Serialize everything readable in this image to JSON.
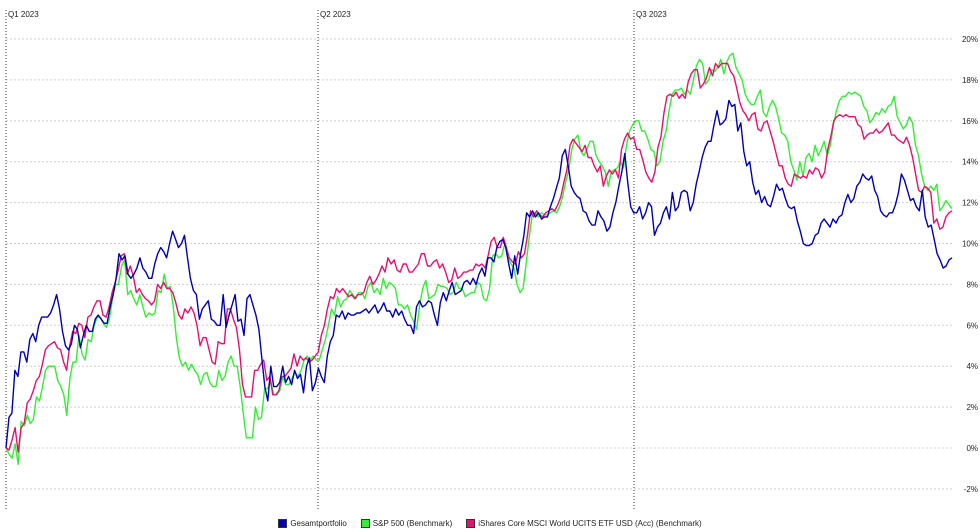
{
  "chart_data": {
    "type": "line",
    "quarter_labels": [
      "Q1 2023",
      "Q2 2023",
      "Q3 2023"
    ],
    "y_tick_labels": [
      "-2%",
      "0%",
      "2%",
      "4%",
      "6%",
      "8%",
      "10%",
      "12%",
      "14%",
      "16%",
      "18%",
      "20%"
    ],
    "ylim": [
      -2.5,
      21
    ],
    "grid": true,
    "legend_position": "bottom-center",
    "series": [
      {
        "name": "Gesamtportfolio",
        "color": "#0000b0",
        "values": [
          0.0,
          1.5,
          1.7,
          3.8,
          3.5,
          4.7,
          4.7,
          4.2,
          5.3,
          5.6,
          5.2,
          6.0,
          6.4,
          6.4,
          6.4,
          6.6,
          7.0,
          7.5,
          6.8,
          5.7,
          5.0,
          4.8,
          5.1,
          6.0,
          5.8,
          4.9,
          5.5,
          6.0,
          5.7,
          5.7,
          6.3,
          6.5,
          6.3,
          6.1,
          6.1,
          6.9,
          7.5,
          8.3,
          9.5,
          9.2,
          9.4,
          8.5,
          8.3,
          8.5,
          8.8,
          9.3,
          8.8,
          8.6,
          8.3,
          8.3,
          9.0,
          9.5,
          9.8,
          9.6,
          9.3,
          10.0,
          10.6,
          10.2,
          9.8,
          10.0,
          10.4,
          9.3,
          8.3,
          7.7,
          7.5,
          6.3,
          6.8,
          7.0,
          7.2,
          6.3,
          6.2,
          6.0,
          6.0,
          7.5,
          5.9,
          6.5,
          7.0,
          7.5,
          6.2,
          6.3,
          5.5,
          7.3,
          7.5,
          7.0,
          6.5,
          5.8,
          4.4,
          3.0,
          2.3,
          4.0,
          3.0,
          3.0,
          3.2,
          4.0,
          3.2,
          3.5,
          3.1,
          3.8,
          3.4,
          3.6,
          2.7,
          4.0,
          4.4,
          2.8,
          3.2,
          3.9,
          3.5,
          3.2,
          4.5,
          5.2,
          5.5,
          6.5,
          6.4,
          6.7,
          6.3,
          6.6,
          6.5,
          6.5,
          6.6,
          6.6,
          6.7,
          6.8,
          6.6,
          6.8,
          7.0,
          6.6,
          6.8,
          7.1,
          6.7,
          6.7,
          6.4,
          6.8,
          6.5,
          6.7,
          6.3,
          6.0,
          6.0,
          5.6,
          6.9,
          7.2,
          6.9,
          7.0,
          7.2,
          7.1,
          6.5,
          6.0,
          7.1,
          7.6,
          7.2,
          7.7,
          8.1,
          7.5,
          7.6,
          7.7,
          8.1,
          8.2,
          8.0,
          8.3,
          8.0,
          8.5,
          8.8,
          8.4,
          9.3,
          9.3,
          9.1,
          9.8,
          10.1,
          10.2,
          9.8,
          9.0,
          8.3,
          9.4,
          8.5,
          9.5,
          10.3,
          11.5,
          11.3,
          11.6,
          11.3,
          11.5,
          11.2,
          11.3,
          11.3,
          11.8,
          12.2,
          12.7,
          13.2,
          14.3,
          14.6,
          13.8,
          12.8,
          12.5,
          12.3,
          12.2,
          11.6,
          11.5,
          11.1,
          10.9,
          10.9,
          11.6,
          11.3,
          11.1,
          10.6,
          10.8,
          11.5,
          12.0,
          12.8,
          13.5,
          14.4,
          13.0,
          11.8,
          11.5,
          11.5,
          11.8,
          11.2,
          11.5,
          12.0,
          11.8,
          10.4,
          10.8,
          11.0,
          11.5,
          11.8,
          11.2,
          12.5,
          11.6,
          11.8,
          12.5,
          12.6,
          12.5,
          11.6,
          12.0,
          12.9,
          13.5,
          14.2,
          14.7,
          15.0,
          15.0,
          15.8,
          16.5,
          15.8,
          15.9,
          16.1,
          17.0,
          16.7,
          16.8,
          15.5,
          15.9,
          14.5,
          13.8,
          14.0,
          13.0,
          12.4,
          12.6,
          12.0,
          12.3,
          11.9,
          11.8,
          12.3,
          12.9,
          12.6,
          12.7,
          12.2,
          11.8,
          11.7,
          11.8,
          11.1,
          10.6,
          10.0,
          9.9,
          9.9,
          10.0,
          10.4,
          10.5,
          11.0,
          11.2,
          11.0,
          10.8,
          11.2,
          11.0,
          11.3,
          11.4,
          12.0,
          12.4,
          12.0,
          12.2,
          12.8,
          13.0,
          13.4,
          13.2,
          13.1,
          13.3,
          12.6,
          12.3,
          11.6,
          11.4,
          11.3,
          11.5,
          11.5,
          11.9,
          12.5,
          13.4,
          13.1,
          12.6,
          12.1,
          12.2,
          11.8,
          11.6,
          12.6,
          11.3,
          10.8,
          10.9,
          10.2,
          9.5,
          9.2,
          8.8,
          8.9,
          9.2,
          9.3
        ]
      },
      {
        "name": "S&P 500 (Benchmark)",
        "color": "#33ee33",
        "values": [
          0.0,
          -0.3,
          -0.5,
          0.2,
          -0.8,
          1.3,
          1.1,
          1.6,
          1.2,
          1.4,
          2.5,
          2.3,
          3.0,
          3.8,
          4.0,
          4.0,
          4.0,
          3.3,
          3.0,
          2.6,
          1.6,
          3.4,
          4.2,
          4.2,
          5.5,
          4.6,
          4.3,
          5.3,
          5.2,
          6.0,
          6.4,
          6.4,
          6.1,
          5.9,
          6.3,
          7.3,
          8.0,
          8.0,
          8.9,
          9.2,
          7.5,
          7.7,
          7.3,
          7.0,
          7.5,
          6.9,
          6.4,
          6.6,
          6.5,
          6.6,
          7.7,
          7.6,
          8.5,
          7.8,
          7.9,
          6.9,
          5.4,
          4.4,
          4.0,
          4.2,
          3.8,
          4.1,
          3.8,
          3.6,
          3.1,
          3.6,
          3.7,
          3.2,
          3.0,
          3.0,
          3.8,
          3.3,
          3.5,
          4.2,
          4.5,
          4.0,
          4.0,
          3.0,
          1.7,
          0.5,
          0.5,
          0.5,
          2.0,
          1.4,
          1.5,
          2.9,
          2.9,
          3.3,
          2.6,
          2.6,
          2.8,
          3.5,
          3.1,
          3.1,
          3.4,
          3.7,
          3.5,
          3.8,
          4.3,
          4.5,
          4.3,
          4.5,
          4.3,
          4.3,
          4.8,
          5.3,
          6.0,
          6.8,
          6.5,
          7.4,
          6.9,
          7.2,
          7.3,
          7.7,
          7.5,
          7.3,
          7.6,
          7.6,
          7.3,
          7.9,
          8.1,
          7.6,
          7.8,
          7.5,
          8.3,
          7.8,
          8.1,
          8.0,
          7.8,
          7.0,
          7.0,
          6.8,
          7.0,
          6.5,
          6.2,
          5.8,
          7.0,
          7.8,
          8.2,
          7.3,
          7.4,
          7.5,
          8.0,
          7.9,
          7.9,
          7.8,
          7.5,
          7.6,
          8.1,
          7.8,
          7.8,
          7.4,
          7.5,
          7.6,
          7.6,
          8.1,
          8.0,
          7.3,
          7.2,
          7.8,
          9.4,
          9.5,
          9.3,
          9.4,
          10.0,
          9.3,
          9.0,
          8.8,
          8.0,
          7.6,
          7.8,
          9.0,
          10.3,
          11.4,
          11.5,
          11.3,
          11.5,
          11.4,
          11.4,
          11.5,
          11.6,
          11.5,
          11.8,
          12.3,
          13.0,
          13.6,
          14.6,
          15.1,
          15.3,
          14.5,
          14.3,
          14.6,
          15.0,
          15.0,
          14.3,
          14.0,
          13.8,
          13.5,
          12.8,
          13.5,
          13.6,
          13.7,
          14.0,
          13.7,
          14.8,
          15.5,
          15.8,
          16.0,
          16.0,
          15.5,
          15.5,
          15.1,
          14.6,
          14.5,
          13.8,
          14.0,
          15.0,
          15.5,
          16.5,
          17.3,
          17.5,
          17.5,
          17.6,
          17.3,
          17.5,
          17.3,
          18.0,
          18.7,
          19.0,
          18.8,
          17.8,
          18.0,
          18.5,
          18.4,
          18.6,
          19.0,
          18.3,
          18.9,
          19.2,
          19.3,
          18.6,
          18.3,
          18.0,
          17.3,
          17.0,
          16.8,
          16.8,
          17.2,
          17.5,
          16.4,
          16.2,
          16.7,
          17.0,
          16.7,
          16.1,
          15.4,
          15.3,
          15.0,
          14.0,
          13.6,
          13.1,
          14.0,
          13.3,
          14.2,
          14.4,
          14.0,
          14.8,
          14.3,
          14.6,
          15.0,
          14.3,
          14.8,
          15.8,
          16.5,
          17.0,
          17.2,
          17.2,
          17.4,
          17.3,
          17.4,
          17.3,
          17.2,
          16.7,
          16.5,
          15.9,
          16.1,
          16.4,
          16.3,
          16.6,
          16.4,
          16.7,
          16.8,
          17.2,
          16.2,
          15.9,
          15.6,
          15.8,
          16.2,
          15.9,
          14.8,
          14.3,
          13.4,
          12.8,
          12.6,
          12.8,
          12.6,
          12.9,
          11.6,
          11.8,
          12.1,
          11.9,
          11.7
        ]
      },
      {
        "name": "iShares Core MSCI World UCITS ETF USD (Acc) (Benchmark)",
        "color": "#e6106f",
        "values": [
          0.0,
          -0.1,
          0.4,
          1.0,
          -0.2,
          1.0,
          1.2,
          2.2,
          2.4,
          2.8,
          3.3,
          3.5,
          4.1,
          4.8,
          5.0,
          5.1,
          5.2,
          4.9,
          4.8,
          4.2,
          3.8,
          5.0,
          5.7,
          5.6,
          6.1,
          6.0,
          5.4,
          6.4,
          6.5,
          6.9,
          7.2,
          7.2,
          6.5,
          6.4,
          6.9,
          7.6,
          8.1,
          8.7,
          9.4,
          9.5,
          8.5,
          8.9,
          8.4,
          7.6,
          7.8,
          7.5,
          7.3,
          7.2,
          7.0,
          7.2,
          8.0,
          7.8,
          8.1,
          7.8,
          7.8,
          7.6,
          7.1,
          6.5,
          6.3,
          6.8,
          6.6,
          6.9,
          6.6,
          6.0,
          5.0,
          5.4,
          5.4,
          4.8,
          4.2,
          4.1,
          5.2,
          5.1,
          5.1,
          6.8,
          6.8,
          6.3,
          5.9,
          4.8,
          3.1,
          2.5,
          2.5,
          2.5,
          3.8,
          3.8,
          4.1,
          4.3,
          3.3,
          3.5,
          2.6,
          2.6,
          2.8,
          3.5,
          3.5,
          3.7,
          3.9,
          4.6,
          4.0,
          4.5,
          4.3,
          4.4,
          4.2,
          4.3,
          4.5,
          4.7,
          5.5,
          6.0,
          6.8,
          7.4,
          7.3,
          7.8,
          7.6,
          7.8,
          7.6,
          7.4,
          7.5,
          7.3,
          7.5,
          7.5,
          7.6,
          8.1,
          8.4,
          8.0,
          8.2,
          8.5,
          8.9,
          8.6,
          9.3,
          9.0,
          9.2,
          8.7,
          8.6,
          9.0,
          9.0,
          8.6,
          8.6,
          8.8,
          9.0,
          9.5,
          9.5,
          8.9,
          8.9,
          9.1,
          9.2,
          8.8,
          9.0,
          8.6,
          8.1,
          8.2,
          8.8,
          8.3,
          8.4,
          8.6,
          8.6,
          8.7,
          8.7,
          9.0,
          8.9,
          9.0,
          8.8,
          9.4,
          10.1,
          10.3,
          9.8,
          9.8,
          10.3,
          9.8,
          9.3,
          9.1,
          9.0,
          9.6,
          9.3,
          9.5,
          10.4,
          11.6,
          11.3,
          11.6,
          11.4,
          11.3,
          11.5,
          11.6,
          11.7,
          11.6,
          11.9,
          12.3,
          13.0,
          13.6,
          14.8,
          15.1,
          14.9,
          14.7,
          14.5,
          14.8,
          14.2,
          14.2,
          13.8,
          13.5,
          13.8,
          12.8,
          13.3,
          13.6,
          13.4,
          13.6,
          13.2,
          14.6,
          15.1,
          15.4,
          15.1,
          15.2,
          14.6,
          14.6,
          14.1,
          13.5,
          13.2,
          13.0,
          13.5,
          14.7,
          15.2,
          16.4,
          17.2,
          17.3,
          17.2,
          17.4,
          17.1,
          17.3,
          17.1,
          17.9,
          18.3,
          18.5,
          18.5,
          17.6,
          17.8,
          18.1,
          18.6,
          18.2,
          18.8,
          18.6,
          18.8,
          18.8,
          18.8,
          18.4,
          18.2,
          17.6,
          16.9,
          16.5,
          16.3,
          16.0,
          16.3,
          16.4,
          15.6,
          15.5,
          15.9,
          16.0,
          15.5,
          15.0,
          14.4,
          13.8,
          13.8,
          13.2,
          12.9,
          12.8,
          13.4,
          13.3,
          13.2,
          13.3,
          13.2,
          13.6,
          13.4,
          13.7,
          13.6,
          13.2,
          13.5,
          14.6,
          15.2,
          16.0,
          16.2,
          16.3,
          16.2,
          16.3,
          16.2,
          16.2,
          16.2,
          15.8,
          15.7,
          15.1,
          15.3,
          15.4,
          15.4,
          15.6,
          15.4,
          15.5,
          15.7,
          15.9,
          15.3,
          15.3,
          15.1,
          15.0,
          14.9,
          15.2,
          14.8,
          14.2,
          13.4,
          12.6,
          12.5,
          12.8,
          12.7,
          12.5,
          11.0,
          11.2,
          10.7,
          10.8,
          11.3,
          11.5,
          11.6
        ]
      }
    ]
  }
}
